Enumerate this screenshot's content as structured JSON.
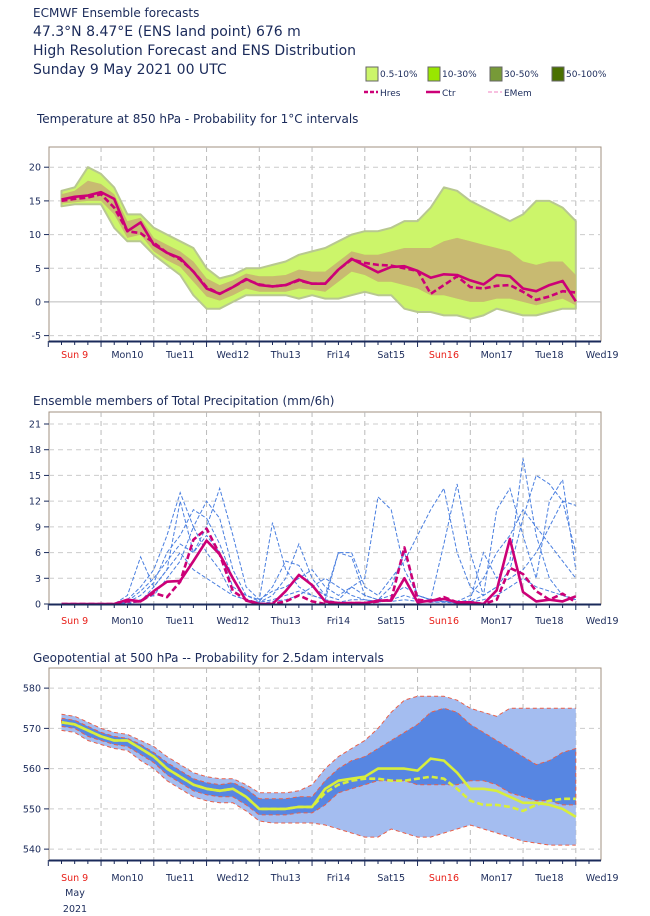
{
  "header": {
    "line1": "ECMWF Ensemble forecasts",
    "line2": " 47.3°N 8.47°E (ENS land point) 676 m",
    "line3": "High Resolution Forecast and ENS Distribution",
    "line4": "Sunday  9 May 2021 00 UTC"
  },
  "legend": {
    "boxes": [
      {
        "label": "0.5-10%",
        "color": "#ccf56a"
      },
      {
        "label": "10-30%",
        "color": "#99e600"
      },
      {
        "label": "30-50%",
        "color": "#779a38"
      },
      {
        "label": "50-100%",
        "color": "#4a7000"
      }
    ],
    "lines": [
      {
        "label": "Hres",
        "style": "dashed-thick",
        "color": "#cc0077"
      },
      {
        "label": "Ctr",
        "style": "solid-thick",
        "color": "#cc0077"
      },
      {
        "label": "EMem",
        "style": "dashed-thin",
        "color": "#f080c0"
      }
    ]
  },
  "x_axis": {
    "day_labels": [
      "Sun 9",
      "Mon10",
      "Tue11",
      "Wed12",
      "Thu13",
      "Fri14",
      "Sat15",
      "Sun16",
      "Mon17",
      "Tue18",
      "Wed19"
    ],
    "sunday_color": "#e8201a",
    "month_label": "May",
    "year_label": "2021",
    "time_step_hours": 6,
    "first_step_hour": 6
  },
  "chart_data": [
    {
      "type": "line",
      "title": "Temperature at 850 hPa - Probability for 1°C intervals",
      "ylim": [
        -5.8,
        23
      ],
      "yticks": [
        -5,
        0,
        5,
        10,
        15,
        20
      ],
      "grid": true,
      "series": [
        {
          "name": "Ctr",
          "color": "#cc0077",
          "values": [
            15.2,
            15.6,
            15.8,
            16.3,
            15.3,
            10.5,
            11.8,
            8.5,
            7.3,
            6.5,
            4.5,
            2.0,
            1.2,
            2.2,
            3.4,
            2.5,
            2.3,
            2.5,
            3.3,
            2.7,
            2.7,
            4.8,
            6.4,
            5.4,
            4.4,
            5.2,
            5.3,
            4.6,
            3.6,
            4.1,
            4.0,
            3.2,
            2.6,
            4.0,
            3.8,
            2.0,
            1.6,
            2.5,
            3.1,
            0.1
          ]
        },
        {
          "name": "Hres",
          "color": "#cc0077",
          "values": [
            15.0,
            15.3,
            15.5,
            16.0,
            14.0,
            10.5,
            10.2,
            8.8,
            7.3,
            6.3,
            4.5,
            2.2,
            1.2,
            2.2,
            3.3,
            2.6,
            2.3,
            2.5,
            3.2,
            2.7,
            2.7,
            4.8,
            6.3,
            5.8,
            5.5,
            5.4,
            5.0,
            4.6,
            1.2,
            2.5,
            3.8,
            2.2,
            2.0,
            2.4,
            2.5,
            1.5,
            0.3,
            0.8,
            1.6,
            1.4
          ]
        }
      ],
      "bands": [
        {
          "name": "0.5-10%",
          "color": "#ccf56a",
          "upper": [
            16.5,
            17,
            20,
            19,
            17,
            13,
            13,
            11,
            10,
            9,
            8,
            5,
            3.5,
            4,
            5,
            5,
            5.5,
            6,
            7,
            7.5,
            8,
            9,
            10,
            10.5,
            10.5,
            11,
            12,
            12,
            14,
            17,
            16.5,
            15,
            14,
            13,
            12,
            13,
            15,
            15,
            14,
            12
          ],
          "lower": [
            14.2,
            14.5,
            14.5,
            14.5,
            11,
            9,
            9,
            7,
            5.5,
            4,
            1,
            -1,
            -1,
            0,
            1,
            1,
            1,
            1,
            0.5,
            1,
            0.5,
            0.5,
            1,
            1.5,
            1,
            1,
            -1,
            -1.5,
            -1.5,
            -2,
            -2,
            -2.5,
            -2,
            -1,
            -1.5,
            -2,
            -2,
            -1.5,
            -1,
            -1
          ]
        },
        {
          "name": "10-30%",
          "color": "#a8ea30",
          "upper": [
            16,
            16.5,
            18,
            17.5,
            16,
            12,
            12.5,
            9.5,
            8.5,
            7.5,
            6,
            3.5,
            2.5,
            3.2,
            4.2,
            3.8,
            3.8,
            4,
            4.8,
            4.5,
            4.5,
            6,
            7.5,
            7,
            7,
            7.5,
            8,
            8,
            8,
            9,
            9.5,
            9,
            8.5,
            8,
            7.5,
            6,
            5.5,
            6,
            6,
            4
          ],
          "lower": [
            14.6,
            14.8,
            15,
            15,
            13,
            9.5,
            10,
            7.5,
            6.2,
            5.2,
            3,
            0.8,
            0.2,
            1,
            2,
            1.5,
            1.5,
            1.5,
            2,
            1.8,
            1.5,
            3,
            4.5,
            4,
            3,
            3,
            2.5,
            2,
            1,
            1,
            0.5,
            0,
            0,
            0.5,
            0.5,
            0,
            -0.5,
            0,
            0.5,
            -0.5
          ]
        }
      ],
      "member_color": "#f080c0"
    },
    {
      "type": "line",
      "title": "Ensemble members of Total Precipitation (mm/6h)",
      "ylim": [
        0,
        22.4
      ],
      "yticks": [
        0,
        3,
        6,
        9,
        12,
        15,
        18,
        21
      ],
      "grid": true,
      "series": [
        {
          "name": "Ctr",
          "color": "#cc0077",
          "values": [
            0,
            0,
            0,
            0,
            0,
            0.5,
            0.3,
            1.5,
            2.6,
            2.7,
            5,
            7.4,
            5.8,
            3,
            0.4,
            0,
            0,
            1.5,
            3.4,
            2.2,
            0.3,
            0.1,
            0.1,
            0.1,
            0.4,
            0.4,
            3,
            0.2,
            0.4,
            0.6,
            0.2,
            0.2,
            0,
            1.6,
            7.6,
            1.4,
            0.3,
            0.5,
            0.3,
            0.9
          ]
        },
        {
          "name": "Hres",
          "color": "#cc0077",
          "values": [
            0,
            0,
            0,
            0,
            0,
            0.3,
            0.3,
            1.3,
            0.8,
            2.6,
            7.5,
            8.8,
            5.8,
            1.5,
            0.5,
            0,
            0,
            0.3,
            1,
            0.3,
            0,
            0,
            0.1,
            0.1,
            0.3,
            0.5,
            6.6,
            0.5,
            0.3,
            0.8,
            0.2,
            0.2,
            0,
            0.5,
            4.2,
            3.5,
            1.5,
            0.5,
            1.2,
            0.2
          ]
        }
      ],
      "members": [
        [
          0,
          0,
          0,
          0,
          0,
          1,
          5.5,
          2,
          4,
          12,
          6,
          9,
          13.5,
          8,
          2,
          0.5,
          9.5,
          4,
          2,
          1,
          0.5,
          6,
          5.5,
          1,
          0.5,
          2,
          6,
          1,
          0.5,
          0.3,
          0.2,
          0.5,
          6,
          3,
          5,
          17,
          8,
          3,
          1,
          0.5
        ],
        [
          0,
          0,
          0,
          0,
          0,
          0.5,
          2,
          4,
          8,
          13,
          9,
          12,
          10,
          4,
          1,
          0.3,
          2,
          5,
          4.5,
          2,
          1,
          0.5,
          2,
          3,
          12.5,
          11,
          4,
          1,
          0.5,
          7,
          14,
          6,
          1,
          2,
          4,
          10,
          15,
          14,
          12,
          11.5
        ],
        [
          0,
          0,
          0,
          0,
          0,
          0.2,
          1,
          2.5,
          6,
          8,
          11,
          10,
          7,
          3,
          0.5,
          0.2,
          1,
          3,
          7,
          3,
          1,
          6,
          6,
          2,
          1,
          3,
          5,
          8,
          11,
          13.5,
          6,
          2,
          1,
          11,
          13.5,
          8,
          3,
          12,
          14.5,
          4
        ],
        [
          0,
          0,
          0,
          0,
          0,
          0.3,
          1.5,
          3,
          5,
          7,
          6,
          8,
          6,
          2,
          1,
          0.5,
          1.5,
          2,
          3,
          4,
          2,
          1,
          2,
          1,
          0.5,
          1,
          2,
          1,
          0.5,
          0.5,
          0.3,
          1,
          3,
          6,
          8,
          11,
          9,
          7,
          5,
          3
        ],
        [
          0,
          0,
          0,
          0,
          0,
          0.1,
          0.5,
          1,
          3,
          5,
          9,
          6,
          4,
          1,
          0.5,
          0.2,
          0.5,
          1,
          1.5,
          1,
          0.5,
          0.2,
          0.5,
          0.5,
          0.2,
          0.5,
          1,
          0.5,
          0.2,
          0.2,
          0.1,
          0.3,
          1,
          2,
          3,
          4,
          6,
          9,
          12,
          6
        ],
        [
          0,
          0,
          0,
          0,
          0,
          0,
          0.3,
          2,
          4,
          6,
          4,
          3,
          2,
          1,
          0.5,
          0,
          0.3,
          0.5,
          1,
          2,
          3,
          2,
          1,
          0.5,
          0.3,
          0.3,
          0.5,
          0.3,
          0.2,
          0.3,
          0.1,
          0.2,
          0.5,
          1,
          2,
          3,
          2,
          1.5,
          1,
          0.5
        ]
      ],
      "member_color": "#4a7fe0"
    },
    {
      "type": "line",
      "title": "Geopotential at 500 hPa -- Probability for 2.5dam intervals",
      "ylim": [
        537.3,
        585
      ],
      "yticks": [
        540,
        550,
        560,
        570,
        580
      ],
      "grid": true,
      "series": [
        {
          "name": "Ctr",
          "color": "#d8ee3c",
          "values": [
            571.5,
            571,
            569.5,
            568,
            567,
            567,
            565,
            563,
            560,
            558,
            556,
            555,
            554.5,
            555,
            553,
            550,
            550,
            550,
            550.5,
            550.5,
            555,
            557,
            557.5,
            558,
            560,
            560,
            560,
            559.5,
            562.5,
            562,
            559,
            555,
            555,
            554.5,
            553,
            551.5,
            551.5,
            551,
            550,
            548
          ]
        },
        {
          "name": "Hres",
          "color": "#d8ee3c",
          "values": [
            571.5,
            571,
            569.5,
            568,
            567,
            567,
            565,
            563,
            560,
            558,
            556,
            555,
            554.5,
            555,
            553,
            550,
            550,
            550,
            550.5,
            550.5,
            554,
            556,
            557,
            557.5,
            557.5,
            557,
            557,
            557.5,
            558,
            557.5,
            555,
            552,
            551,
            551,
            550.5,
            549.5,
            551,
            552,
            552.5,
            552.5
          ]
        }
      ],
      "bands": [
        {
          "name": "outer",
          "color": "#a4bdf0",
          "upper": [
            573.5,
            573,
            571.5,
            570,
            569,
            568.5,
            567,
            565.5,
            563,
            561,
            559,
            558,
            557.5,
            557.5,
            556,
            554,
            554,
            554,
            554.5,
            556,
            560,
            563,
            565,
            567,
            570,
            574,
            577,
            578,
            578,
            578,
            577,
            575,
            574,
            573,
            575,
            575,
            575,
            575,
            575,
            575
          ],
          "lower": [
            569.5,
            569,
            567,
            566,
            565,
            564.5,
            562,
            560,
            557,
            555,
            553,
            552,
            551.5,
            551.5,
            549.5,
            547,
            546.5,
            546.5,
            546.5,
            546.5,
            546,
            545,
            544,
            543,
            543,
            545,
            544,
            543,
            543,
            544,
            545,
            546,
            545,
            544,
            543,
            542,
            541.5,
            541,
            541,
            541
          ]
        },
        {
          "name": "inner",
          "color": "#4f7fe0",
          "upper": [
            572.5,
            572,
            570.5,
            569,
            568,
            567.5,
            566,
            564,
            561.5,
            559.5,
            557.5,
            556.5,
            556,
            556.5,
            555,
            552.5,
            552.5,
            552.5,
            553,
            553,
            557,
            560,
            562,
            563,
            565,
            567,
            569,
            571,
            574,
            575,
            574,
            571,
            569,
            567,
            565,
            563,
            561,
            562,
            564,
            565
          ],
          "lower": [
            570.5,
            570,
            568,
            567,
            566,
            565.5,
            563.5,
            561.5,
            558.5,
            556.5,
            554.5,
            553.5,
            553,
            553,
            551,
            548.5,
            548.5,
            548.5,
            549,
            549,
            551,
            554,
            555,
            556,
            557,
            557,
            557,
            556,
            556,
            556,
            556,
            557,
            557,
            556,
            554,
            553,
            552,
            552,
            551,
            551
          ]
        }
      ],
      "member_color": "#e8604a"
    }
  ]
}
